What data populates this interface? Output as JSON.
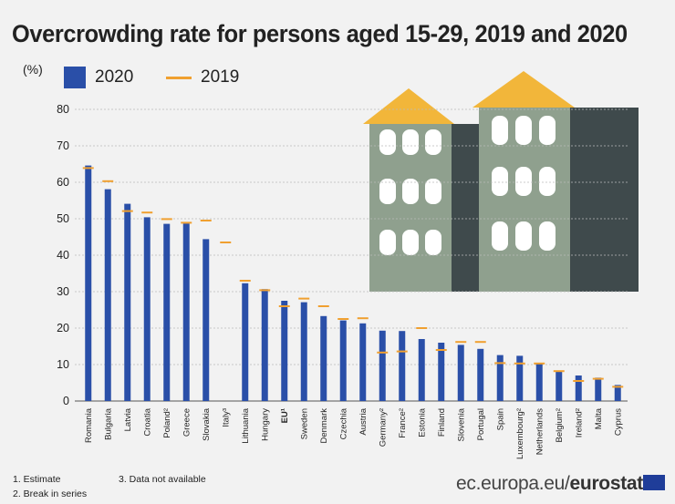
{
  "header": {
    "title": "Overcrowding rate for persons aged 15-29, 2019 and 2020",
    "unit": "(%)"
  },
  "legend": {
    "series_2020": "2020",
    "series_2019": "2019"
  },
  "notes": {
    "note1": "1. Estimate",
    "note2": "2. Break in series",
    "note3": "3. Data not available"
  },
  "brand": {
    "domain": "ec.europa.eu/",
    "name": "eurostat"
  },
  "colors": {
    "bar_2020": "#2a4fa8",
    "marker_2019": "#f0a030",
    "grid": "#bbbbbb"
  },
  "chart_data": {
    "type": "bar",
    "title": "Overcrowding rate for persons aged 15-29, 2019 and 2020",
    "ylabel": "(%)",
    "ylim": [
      0,
      80
    ],
    "yticks": [
      0,
      10,
      20,
      30,
      40,
      50,
      60,
      70,
      80
    ],
    "categories": [
      "Romania",
      "Bulgaria",
      "Latvia",
      "Croatia",
      "Poland²",
      "Greece",
      "Slovakia",
      "Italy³",
      "Lithuania",
      "Hungary",
      "EU¹",
      "Sweden",
      "Denmark",
      "Czechia",
      "Austria",
      "Germany²",
      "France²",
      "Estonia",
      "Finland",
      "Slovenia",
      "Portugal",
      "Spain",
      "Luxembourg²",
      "Netherlands",
      "Belgium²",
      "Ireland²",
      "Malta",
      "Cyprus"
    ],
    "series": [
      {
        "name": "2020",
        "values": [
          64.6,
          58.1,
          54.1,
          50.4,
          48.6,
          48.7,
          44.4,
          null,
          32.3,
          30.7,
          27.5,
          27.1,
          23.3,
          22.1,
          21.3,
          19.3,
          19.2,
          17.0,
          16.0,
          15.4,
          14.3,
          12.6,
          12.4,
          10.5,
          8.0,
          7.0,
          6.4,
          4.4
        ]
      },
      {
        "name": "2019",
        "values": [
          63.9,
          60.3,
          52.1,
          51.7,
          49.9,
          48.9,
          49.5,
          43.5,
          33.0,
          30.4,
          26.0,
          28.1,
          26.0,
          22.5,
          22.7,
          13.3,
          13.6,
          20.0,
          14.0,
          16.2,
          16.2,
          10.4,
          10.3,
          10.3,
          8.2,
          5.5,
          6.1,
          3.9
        ]
      }
    ]
  }
}
